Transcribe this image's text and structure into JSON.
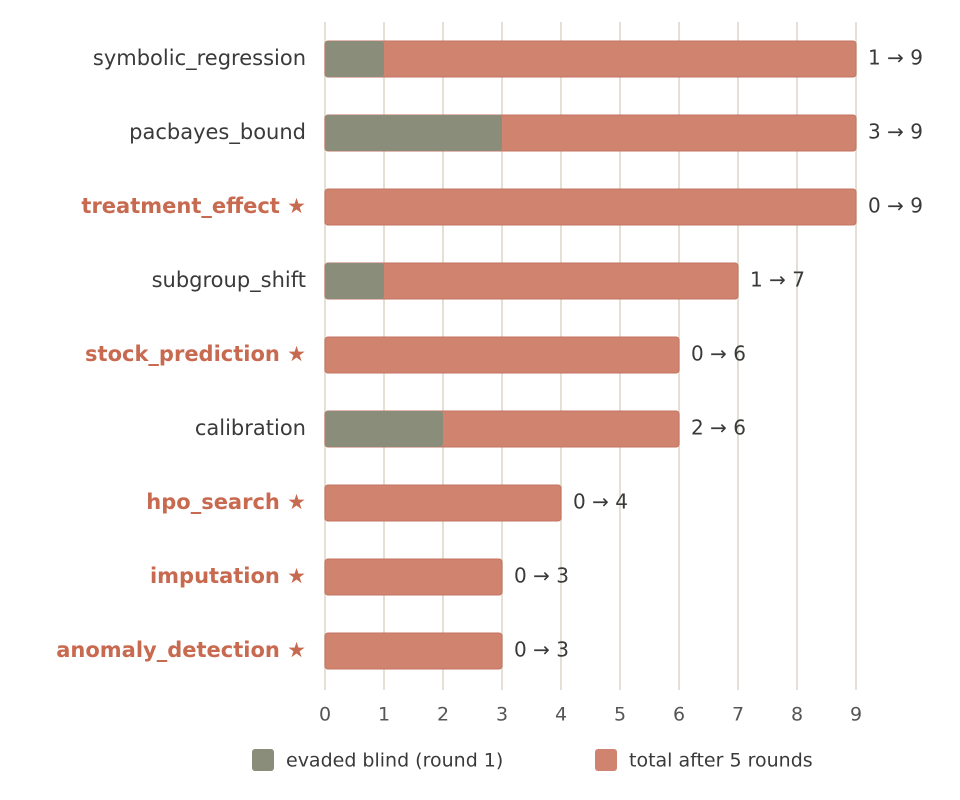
{
  "chart_data": {
    "type": "bar",
    "orientation": "horizontal",
    "categories": [
      "symbolic_regression",
      "pacbayes_bound",
      "treatment_effect ★",
      "subgroup_shift",
      "stock_prediction ★",
      "calibration",
      "hpo_search ★",
      "imputation ★",
      "anomaly_detection ★"
    ],
    "label_colors": [
      "#3a3a3a",
      "#3a3a3a",
      "#c86a50",
      "#3a3a3a",
      "#c86a50",
      "#3a3a3a",
      "#c86a50",
      "#c86a50",
      "#c86a50"
    ],
    "series": [
      {
        "name": "evaded blind (round 1)",
        "color": "#8b8d7b",
        "values": [
          1,
          3,
          0,
          1,
          0,
          2,
          0,
          0,
          0
        ]
      },
      {
        "name": "total after 5 rounds",
        "color": "#d08470",
        "values": [
          9,
          9,
          9,
          7,
          6,
          6,
          4,
          3,
          3
        ],
        "value_labels": [
          "1 → 9",
          "3 → 9",
          "0 → 9",
          "1 → 7",
          "0 → 6",
          "2 → 6",
          "0 → 4",
          "0 → 3",
          "0 → 3"
        ]
      }
    ],
    "xlim": [
      0,
      9
    ],
    "xticks": [
      0,
      1,
      2,
      3,
      4,
      5,
      6,
      7,
      8,
      9
    ],
    "grid": true,
    "legend": "bottom"
  }
}
